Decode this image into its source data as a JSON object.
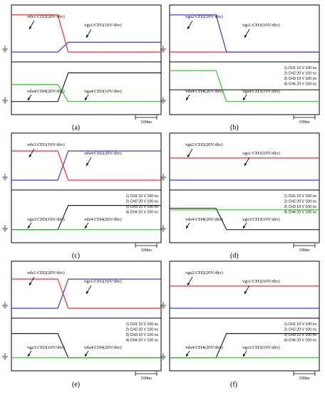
{
  "figure": {
    "panel_labels": [
      "(a)",
      "(b)",
      "(c)",
      "(d)",
      "(e)",
      "(f)"
    ]
  },
  "colors": {
    "ch1": "#3838ff",
    "ch2": "#ff2a2a",
    "ch3": "#1fcf1f",
    "ch4": "#222222",
    "frame": "#000000"
  },
  "chart_data": [
    {
      "id": "a",
      "type": "line",
      "time_base": "100ns",
      "settings": [],
      "top_annotations": [
        "vds1:CH2(20V/div)",
        "vgs1:CH1(10V/div)"
      ],
      "bottom_annotations": [
        "vds4:CH4(20V/div)",
        "vgs4:CH3(10V/div)"
      ],
      "x_ns": [
        0,
        310,
        380,
        1000
      ],
      "series": [
        {
          "channel": "CH2",
          "values": [
            1.2,
            1.2,
            -0.9,
            -0.9
          ]
        },
        {
          "channel": "CH1",
          "values": [
            -0.9,
            -0.9,
            -0.35,
            -0.35
          ]
        },
        {
          "channel": "CH4",
          "values": [
            -0.9,
            -0.9,
            1.05,
            1.05
          ]
        },
        {
          "channel": "CH3",
          "values": [
            0.25,
            0.25,
            -0.9,
            -0.9
          ]
        }
      ]
    },
    {
      "id": "b",
      "type": "line",
      "time_base": "100ns",
      "settings": [
        "1) CH1  10  V     100 ns",
        "2) CH2  20  V     100 ns",
        "3) CH3  10  V     100 ns",
        "4) CH4  20  V     100 ns"
      ],
      "top_annotations": [
        "vgs2:CH2(20V/div)",
        "vgs1:CH1(10V/div)"
      ],
      "bottom_annotations": [
        "vds4:CH4(20V/div)",
        "vgs4:CH3(10V/div)"
      ],
      "x_ns": [
        0,
        310,
        380,
        1000
      ],
      "series": [
        {
          "channel": "CH2",
          "values": [
            -0.9,
            -0.9,
            -0.9,
            -0.9
          ]
        },
        {
          "channel": "CH1",
          "values": [
            1.2,
            1.2,
            -0.9,
            -0.9
          ]
        },
        {
          "channel": "CH4",
          "values": [
            -0.1,
            -0.1,
            -0.1,
            -0.1
          ]
        },
        {
          "channel": "CH3",
          "values": [
            1.2,
            1.2,
            -0.9,
            -0.9
          ]
        }
      ]
    },
    {
      "id": "c",
      "type": "line",
      "time_base": "100ns",
      "settings": [
        "1) CH1  10  V     100 ns",
        "2) CH2  20  V     100 ns",
        "3) CH3  10  V     100 ns",
        "4) CH4  20  V     100 ns"
      ],
      "top_annotations": [
        "vds3:CH1(10V/div)",
        "vds4:CH2(20V/div)"
      ],
      "bottom_annotations": [
        "vgs3:CH3(10V/div)",
        "vds4:CH4(20V/div)"
      ],
      "x_ns": [
        0,
        310,
        380,
        1000
      ],
      "series": [
        {
          "channel": "CH2",
          "values": [
            0.75,
            0.75,
            -0.9,
            -0.9
          ]
        },
        {
          "channel": "CH1",
          "values": [
            -0.9,
            -0.9,
            0.75,
            0.75
          ]
        },
        {
          "channel": "CH4",
          "values": [
            -0.9,
            -0.9,
            0.75,
            0.75
          ]
        },
        {
          "channel": "CH3",
          "values": [
            -0.9,
            -0.9,
            -0.9,
            -0.9
          ]
        }
      ]
    },
    {
      "id": "d",
      "type": "line",
      "time_base": "100ns",
      "settings": [
        "1) CH1  10  V     100 ns",
        "2) CH2  20  V     100 ns",
        "3) CH3  10  V     100 ns",
        "4) CH4  20  V     100 ns"
      ],
      "top_annotations": [
        "vgs2:CH2(20V/div)",
        "vgs1:CH1(10V/div)"
      ],
      "bottom_annotations": [
        "vds4:CH4(20V/div)",
        "vgs3:CH3(10V/div)"
      ],
      "x_ns": [
        0,
        310,
        380,
        1000
      ],
      "series": [
        {
          "channel": "CH2",
          "values": [
            0.35,
            0.35,
            0.35,
            0.35
          ]
        },
        {
          "channel": "CH1",
          "values": [
            -0.9,
            -0.9,
            -0.9,
            -0.9
          ]
        },
        {
          "channel": "CH4",
          "values": [
            0.55,
            0.55,
            -0.9,
            -0.9
          ]
        },
        {
          "channel": "CH3",
          "values": [
            0.45,
            0.45,
            0.45,
            0.45
          ]
        }
      ]
    },
    {
      "id": "e",
      "type": "line",
      "time_base": "100ns",
      "settings": [
        "1) CH1  10  V     100 ns",
        "2) CH2  20  V     100 ns",
        "3) CH3  10  V     100 ns",
        "4) CH4  20  V     100 ns"
      ],
      "top_annotations": [
        "vds1:CH2(20V/div)",
        "vgs1:CH1(10V/div)"
      ],
      "bottom_annotations": [
        "vgs3:CH3(10V/div)",
        "vds4:CH4(20V/div)"
      ],
      "x_ns": [
        0,
        310,
        380,
        1000
      ],
      "series": [
        {
          "channel": "CH2",
          "values": [
            0.75,
            0.75,
            -0.9,
            -0.9
          ]
        },
        {
          "channel": "CH1",
          "values": [
            -0.9,
            -0.9,
            0.75,
            0.75
          ]
        },
        {
          "channel": "CH4",
          "values": [
            0.75,
            0.75,
            -0.9,
            -0.9
          ]
        },
        {
          "channel": "CH3",
          "values": [
            -0.9,
            -0.9,
            -0.9,
            -0.9
          ]
        }
      ]
    },
    {
      "id": "f",
      "type": "line",
      "time_base": "100ns",
      "settings": [
        "1) CH1  10  V     100 ns",
        "2) CH2  20  V     100 ns",
        "3) CH3  10  V     100 ns",
        "4) CH4  20  V     100 ns"
      ],
      "top_annotations": [
        "vgs2:CH2(20V/div)",
        "vgs1:CH1(10V/div)"
      ],
      "bottom_annotations": [
        "vds4:CH4(20V/div)",
        "vgs3:CH3(10V/div)"
      ],
      "x_ns": [
        0,
        310,
        380,
        1000
      ],
      "series": [
        {
          "channel": "CH2",
          "values": [
            0.35,
            0.35,
            0.35,
            0.35
          ]
        },
        {
          "channel": "CH1",
          "values": [
            -0.9,
            -0.9,
            -0.9,
            -0.9
          ]
        },
        {
          "channel": "CH4",
          "values": [
            -0.9,
            -0.9,
            0.75,
            0.75
          ]
        },
        {
          "channel": "CH3",
          "values": [
            -0.9,
            -0.9,
            -0.9,
            -0.9
          ]
        }
      ]
    }
  ]
}
